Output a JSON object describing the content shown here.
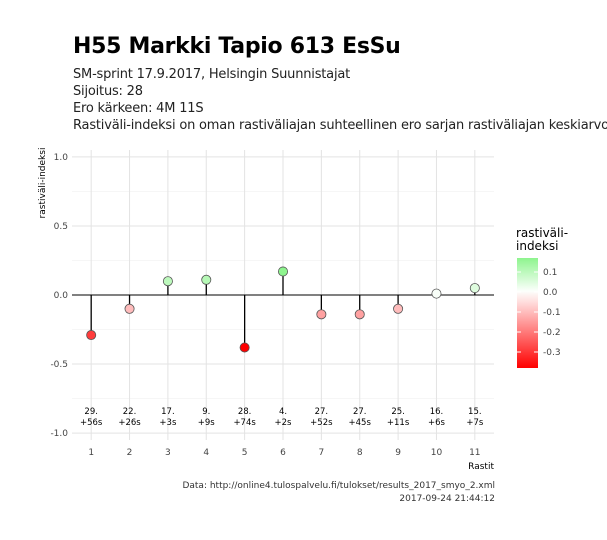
{
  "header": {
    "title": "H55 Markki Tapio 613 EsSu",
    "subtitle_lines": [
      "SM-sprint 17.9.2017, Helsingin Suunnistajat",
      "Sijoitus: 28",
      "Ero kärkeen: 4M 11S",
      "Rastiväli-indeksi on oman rastiväliajan suhteellinen ero sarjan rastiväliajan keskiarvoon"
    ]
  },
  "caption": {
    "line1": "Data: http://online4.tulospalvelu.fi/tulokset/results_2017_smyo_2.xml",
    "line2": "2017-09-24 21:44:12"
  },
  "chart_data": {
    "type": "scatter",
    "style": "lollipop",
    "title": "H55 Markki Tapio 613 EsSu",
    "xlabel": "Rastit",
    "ylabel": "rastiväli-indeksi",
    "x": [
      1,
      2,
      3,
      4,
      5,
      6,
      7,
      8,
      9,
      10,
      11
    ],
    "values": [
      -0.29,
      -0.1,
      0.1,
      0.11,
      -0.38,
      0.17,
      -0.14,
      -0.14,
      -0.1,
      0.01,
      0.05
    ],
    "point_labels": [
      [
        "29.",
        "+56s"
      ],
      [
        "22.",
        "+26s"
      ],
      [
        "17.",
        "+3s"
      ],
      [
        "9.",
        "+9s"
      ],
      [
        "28.",
        "+74s"
      ],
      [
        "4.",
        "+2s"
      ],
      [
        "27.",
        "+52s"
      ],
      [
        "27.",
        "+45s"
      ],
      [
        "25.",
        "+11s"
      ],
      [
        "16.",
        "+6s"
      ],
      [
        "15.",
        "+7s"
      ]
    ],
    "xlim": [
      0.5,
      11.5
    ],
    "ylim": [
      -1.05,
      1.05
    ],
    "yticks": [
      -1.0,
      -0.5,
      0.0,
      0.5,
      1.0
    ],
    "ytick_labels": [
      "-1.0",
      "-0.5",
      "0.0",
      "0.5",
      "1.0"
    ],
    "xtick_labels": [
      "1",
      "2",
      "3",
      "4",
      "5",
      "6",
      "7",
      "8",
      "9",
      "10",
      "11"
    ],
    "grid": true,
    "legend": {
      "title_lines": [
        "rastiväli-",
        "indeksi"
      ],
      "position": "right",
      "range": [
        -0.38,
        0.17
      ],
      "ticks": [
        0.1,
        0.0,
        -0.1,
        -0.2,
        -0.3
      ],
      "tick_labels": [
        "0.1",
        "0.0",
        "-0.1",
        "-0.2",
        "-0.3"
      ]
    },
    "colors": {
      "low": "#ff0000",
      "mid": "#ffffff",
      "high": "#8ef48e",
      "stem": "#000000",
      "grid_major": "#e3e3e3",
      "grid_minor": "#f1f1f1"
    }
  }
}
